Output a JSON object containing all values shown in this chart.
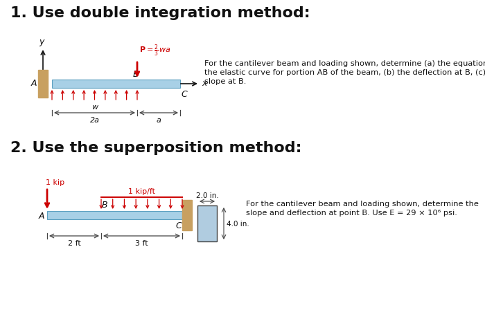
{
  "title1": "1. Use double integration method:",
  "title2": "2. Use the superposition method:",
  "title_fontsize": 16,
  "bg_color": "#ffffff",
  "text1_line1": "For the cantilever beam and loading shown, determine (a) the equation of",
  "text1_line2": "the elastic curve for portion AB of the beam, (b) the deflection at B, (c) the",
  "text1_line3": "slope at B.",
  "text2_line1": "For the cantilever beam and loading shown, determine the",
  "text2_line2": "slope and deflection at point B. Use E = 29 × 10⁶ psi.",
  "beam_color": "#a8d0e6",
  "beam_edge": "#5a9fc0",
  "wall_color": "#c8a060",
  "load_color": "#cc0000",
  "arrow_color": "#111111",
  "text_color": "#111111",
  "dim_color": "#444444"
}
